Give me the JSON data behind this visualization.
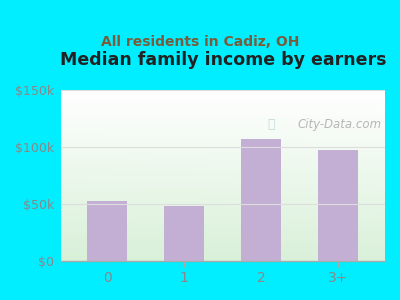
{
  "categories": [
    "0",
    "1",
    "2",
    "3+"
  ],
  "values": [
    52000,
    48000,
    107000,
    97000
  ],
  "bar_color": "#c4afd4",
  "title": "Median family income by earners",
  "subtitle": "All residents in Cadiz, OH",
  "title_fontsize": 12.5,
  "subtitle_fontsize": 10,
  "title_color": "#222222",
  "subtitle_color": "#7a5c3a",
  "background_color": "#00eeff",
  "ylim": [
    0,
    150000
  ],
  "yticks": [
    0,
    50000,
    100000,
    150000
  ],
  "ytick_labels": [
    "$0",
    "$50k",
    "$100k",
    "$150k"
  ],
  "watermark": "City-Data.com",
  "watermark_color": "#aaaaaa",
  "axis_color": "#aaaaaa",
  "tick_color": "#888888",
  "grid_color": "#dddddd"
}
